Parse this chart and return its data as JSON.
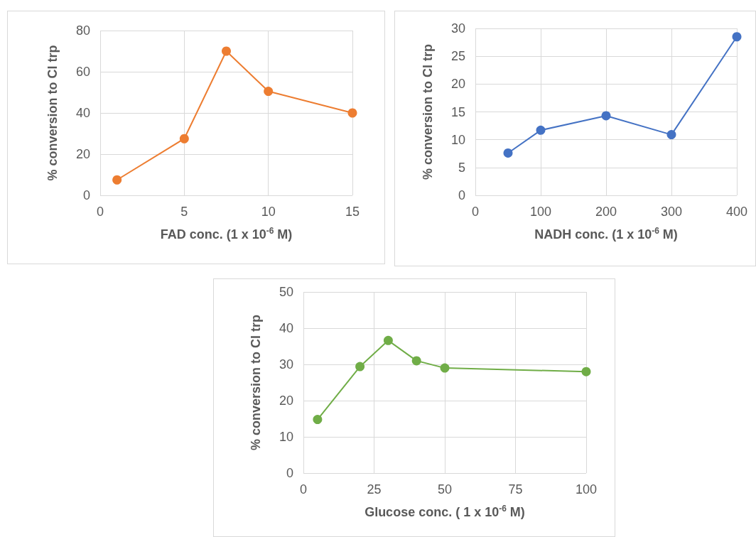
{
  "chart_data": [
    {
      "type": "line",
      "xlabel": "FAD conc. (1 x 10$^{-6}$ M)",
      "ylabel": "% conversion to Cl trp",
      "x": [
        1,
        5,
        7.5,
        10,
        15
      ],
      "xlim": [
        0,
        15
      ],
      "xticks": [
        0,
        5,
        10,
        15
      ],
      "ylim": [
        0,
        80
      ],
      "yticks": [
        0,
        20,
        40,
        60,
        80
      ],
      "grid": true,
      "marker": "circle",
      "line_style": "solid",
      "series": [
        {
          "color": "#ed7d31",
          "values": [
            7.5,
            27.5,
            70,
            50.5,
            40
          ]
        }
      ]
    },
    {
      "type": "line",
      "xlabel": "NADH conc. (1 x 10$^{-6}$ M)",
      "ylabel": "% conversion to Cl trp",
      "x": [
        50,
        100,
        200,
        300,
        400
      ],
      "xlim": [
        0,
        400
      ],
      "xticks": [
        0,
        100,
        200,
        300,
        400
      ],
      "ylim": [
        0,
        30
      ],
      "yticks": [
        0,
        5,
        10,
        15,
        20,
        25,
        30
      ],
      "grid": true,
      "marker": "circle",
      "line_style": "solid",
      "series": [
        {
          "color": "#4472c4",
          "values": [
            7.6,
            11.7,
            14.3,
            10.9,
            28.5
          ]
        }
      ]
    },
    {
      "type": "line",
      "xlabel": "Glucose conc. ( 1 x 10$^{-6}$ M)",
      "ylabel": "% conversion to Cl trp",
      "x": [
        5,
        20,
        30,
        40,
        50,
        100
      ],
      "xlim": [
        0,
        100
      ],
      "xticks": [
        0,
        25,
        50,
        75,
        100
      ],
      "ylim": [
        0,
        50
      ],
      "yticks": [
        0,
        10,
        20,
        30,
        40,
        50
      ],
      "grid": true,
      "marker": "circle",
      "line_style": "solid",
      "series": [
        {
          "color": "#70ad47",
          "values": [
            14.8,
            29.4,
            36.6,
            31,
            29,
            28
          ]
        }
      ]
    }
  ]
}
